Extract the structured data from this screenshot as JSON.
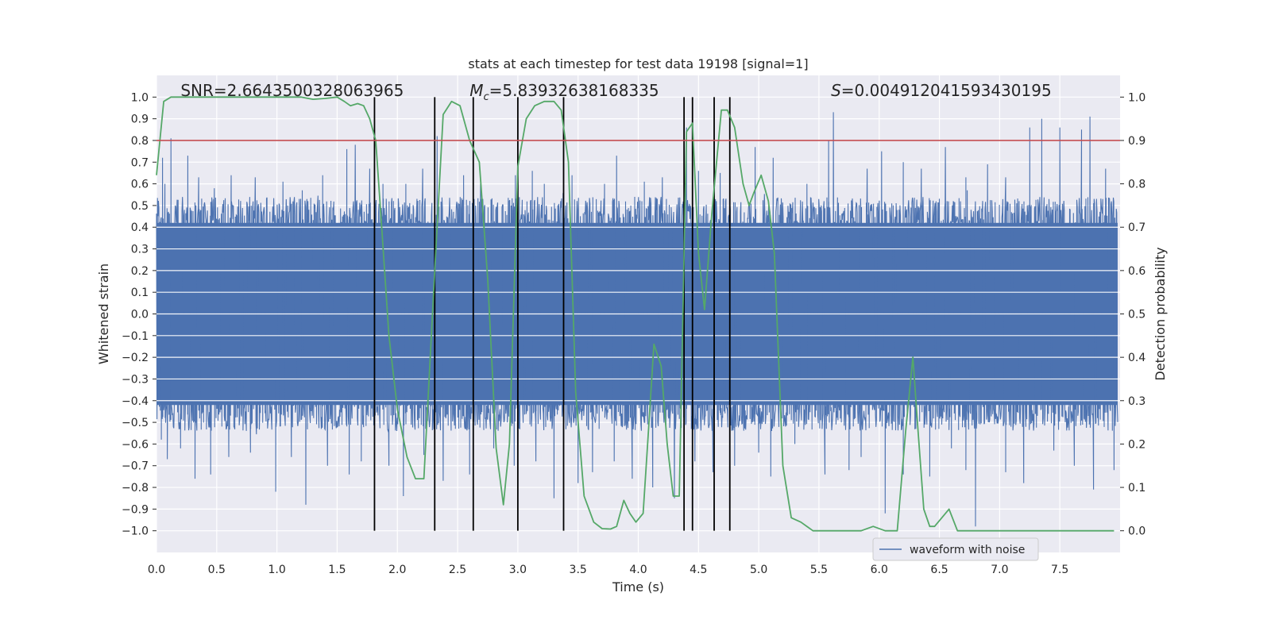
{
  "chart_data": {
    "type": "line",
    "title": "stats at each timestep for test data 19198 [signal=1]",
    "xlabel": "Time (s)",
    "ylabel": "Whitened strain",
    "y2label": "Detection probability",
    "xlim": [
      0.0,
      8.0
    ],
    "ylim": [
      -1.1,
      1.1
    ],
    "y2lim": [
      -0.05,
      1.05
    ],
    "x_ticks": [
      "0.0",
      "0.5",
      "1.0",
      "1.5",
      "2.0",
      "2.5",
      "3.0",
      "3.5",
      "4.0",
      "4.5",
      "5.0",
      "5.5",
      "6.0",
      "6.5",
      "7.0",
      "7.5"
    ],
    "y_ticks": [
      "1.0",
      "0.9",
      "0.8",
      "0.7",
      "0.6",
      "0.5",
      "0.4",
      "0.3",
      "0.2",
      "0.1",
      "0.0",
      "−0.1",
      "−0.2",
      "−0.3",
      "−0.4",
      "−0.5",
      "−0.6",
      "−0.7",
      "−0.8",
      "−0.9",
      "−1.0"
    ],
    "y2_ticks": [
      "1.0",
      "0.9",
      "0.8",
      "0.7",
      "0.6",
      "0.5",
      "0.4",
      "0.3",
      "0.2",
      "0.1",
      "0.0"
    ],
    "grid": true,
    "legend_position": "lower-right",
    "annotations": {
      "snr": "SNR=2.6643500328063965",
      "mc_symbol": "M",
      "mc_sub": "c",
      "mc_value": "=5.83932638168335",
      "s_symbol": "S",
      "s_value": "=0.004912041593430195"
    },
    "threshold": {
      "y": 0.8,
      "color": "#c44e52"
    },
    "vlines": [
      1.81,
      2.31,
      2.63,
      3.0,
      3.38,
      4.38,
      4.45,
      4.63,
      4.76
    ],
    "series": [
      {
        "name": "waveform with noise",
        "axis": "left",
        "color": "#4c72b0",
        "description": "dense whitened strain noise, amplitude mostly within -0.6..0.6 with spikes to ~0.85 and -0.95",
        "peaks_x": [
          0.05,
          0.07,
          0.12,
          0.26,
          0.35,
          0.48,
          0.62,
          0.82,
          1.05,
          1.21,
          1.38,
          1.58,
          1.65,
          1.77,
          1.88,
          2.07,
          2.21,
          2.33,
          2.55,
          2.69,
          2.98,
          3.12,
          3.22,
          3.45,
          3.72,
          3.82,
          4.05,
          4.2,
          4.4,
          4.5,
          4.68,
          4.97,
          5.12,
          5.4,
          5.58,
          5.62,
          5.9,
          6.02,
          6.2,
          6.35,
          6.55,
          6.72,
          6.9,
          7.05,
          7.25,
          7.35,
          7.5,
          7.68,
          7.75,
          7.88
        ],
        "peaks_y": [
          0.72,
          0.6,
          0.81,
          0.73,
          0.63,
          0.58,
          0.64,
          0.63,
          0.61,
          0.57,
          0.64,
          0.76,
          0.78,
          0.67,
          0.6,
          0.6,
          0.67,
          0.82,
          0.64,
          0.6,
          0.64,
          0.66,
          0.6,
          0.64,
          0.6,
          0.73,
          0.61,
          0.63,
          0.86,
          0.66,
          0.65,
          0.77,
          0.72,
          0.6,
          0.8,
          0.93,
          0.67,
          0.75,
          0.7,
          0.67,
          0.77,
          0.63,
          0.69,
          0.63,
          0.86,
          0.9,
          0.86,
          0.85,
          0.91,
          0.67
        ],
        "troughs_x": [
          0.04,
          0.09,
          0.2,
          0.32,
          0.45,
          0.6,
          0.78,
          0.99,
          1.12,
          1.24,
          1.42,
          1.6,
          1.7,
          1.93,
          2.05,
          2.22,
          2.38,
          2.6,
          2.8,
          2.97,
          3.15,
          3.3,
          3.5,
          3.62,
          3.8,
          3.95,
          4.12,
          4.3,
          4.47,
          4.62,
          4.8,
          5.0,
          5.1,
          5.3,
          5.55,
          5.75,
          5.85,
          6.05,
          6.2,
          6.42,
          6.6,
          6.72,
          6.8,
          7.05,
          7.2,
          7.45,
          7.62,
          7.78,
          7.95
        ],
        "troughs_y": [
          -0.58,
          -0.67,
          -0.62,
          -0.76,
          -0.74,
          -0.66,
          -0.64,
          -0.82,
          -0.66,
          -0.88,
          -0.7,
          -0.74,
          -0.68,
          -0.7,
          -0.84,
          -0.65,
          -0.77,
          -0.74,
          -0.62,
          -0.7,
          -0.68,
          -0.85,
          -0.78,
          -0.73,
          -0.68,
          -0.76,
          -0.8,
          -0.85,
          -0.68,
          -0.73,
          -0.7,
          -0.64,
          -0.75,
          -0.6,
          -0.74,
          -0.72,
          -0.66,
          -0.92,
          -0.74,
          -0.75,
          -0.62,
          -0.72,
          -0.98,
          -0.73,
          -0.78,
          -0.63,
          -0.7,
          -0.81,
          -0.72
        ]
      },
      {
        "name": "detection probability",
        "axis": "right",
        "color": "#55a868",
        "x": [
          0.0,
          0.06,
          0.12,
          0.2,
          0.3,
          0.4,
          0.55,
          0.7,
          0.85,
          1.0,
          1.1,
          1.2,
          1.3,
          1.4,
          1.5,
          1.56,
          1.61,
          1.67,
          1.72,
          1.77,
          1.82,
          1.87,
          1.93,
          2.0,
          2.08,
          2.15,
          2.22,
          2.31,
          2.38,
          2.45,
          2.52,
          2.6,
          2.68,
          2.75,
          2.82,
          2.88,
          2.93,
          3.0,
          3.07,
          3.14,
          3.22,
          3.3,
          3.36,
          3.42,
          3.48,
          3.55,
          3.63,
          3.7,
          3.77,
          3.82,
          3.88,
          3.93,
          3.98,
          4.04,
          4.08,
          4.13,
          4.19,
          4.24,
          4.29,
          4.34,
          4.4,
          4.45,
          4.5,
          4.55,
          4.61,
          4.69,
          4.74,
          4.8,
          4.87,
          4.92,
          4.96,
          5.02,
          5.08,
          5.13,
          5.2,
          5.27,
          5.35,
          5.45,
          5.55,
          5.65,
          5.75,
          5.85,
          5.95,
          6.05,
          6.15,
          6.22,
          6.28,
          6.32,
          6.37,
          6.42,
          6.46,
          6.52,
          6.58,
          6.65,
          6.75,
          6.85,
          6.95,
          7.05,
          7.15,
          7.25,
          7.35,
          7.45,
          7.55,
          7.65,
          7.75,
          7.85,
          7.95
        ],
        "y": [
          0.82,
          0.99,
          1.0,
          1.0,
          1.0,
          1.0,
          1.0,
          1.0,
          1.0,
          1.0,
          1.0,
          1.0,
          0.995,
          0.997,
          1.0,
          0.99,
          0.98,
          0.985,
          0.98,
          0.95,
          0.9,
          0.7,
          0.45,
          0.28,
          0.17,
          0.12,
          0.12,
          0.6,
          0.96,
          0.99,
          0.98,
          0.9,
          0.85,
          0.58,
          0.19,
          0.06,
          0.2,
          0.84,
          0.95,
          0.98,
          0.99,
          0.99,
          0.97,
          0.85,
          0.32,
          0.08,
          0.02,
          0.005,
          0.004,
          0.01,
          0.07,
          0.04,
          0.02,
          0.04,
          0.21,
          0.43,
          0.38,
          0.2,
          0.08,
          0.08,
          0.92,
          0.94,
          0.64,
          0.51,
          0.73,
          0.97,
          0.97,
          0.93,
          0.8,
          0.75,
          0.78,
          0.82,
          0.76,
          0.64,
          0.15,
          0.03,
          0.02,
          0.0,
          0.0,
          0.0,
          0.0,
          0.0,
          0.01,
          0.0,
          0.0,
          0.23,
          0.4,
          0.24,
          0.05,
          0.01,
          0.01,
          0.03,
          0.05,
          0.0,
          0.0,
          0.0,
          0.0,
          0.0,
          0.0,
          0.0,
          0.0,
          0.0,
          0.0,
          0.0,
          0.0,
          0.0,
          0.0
        ]
      }
    ]
  }
}
